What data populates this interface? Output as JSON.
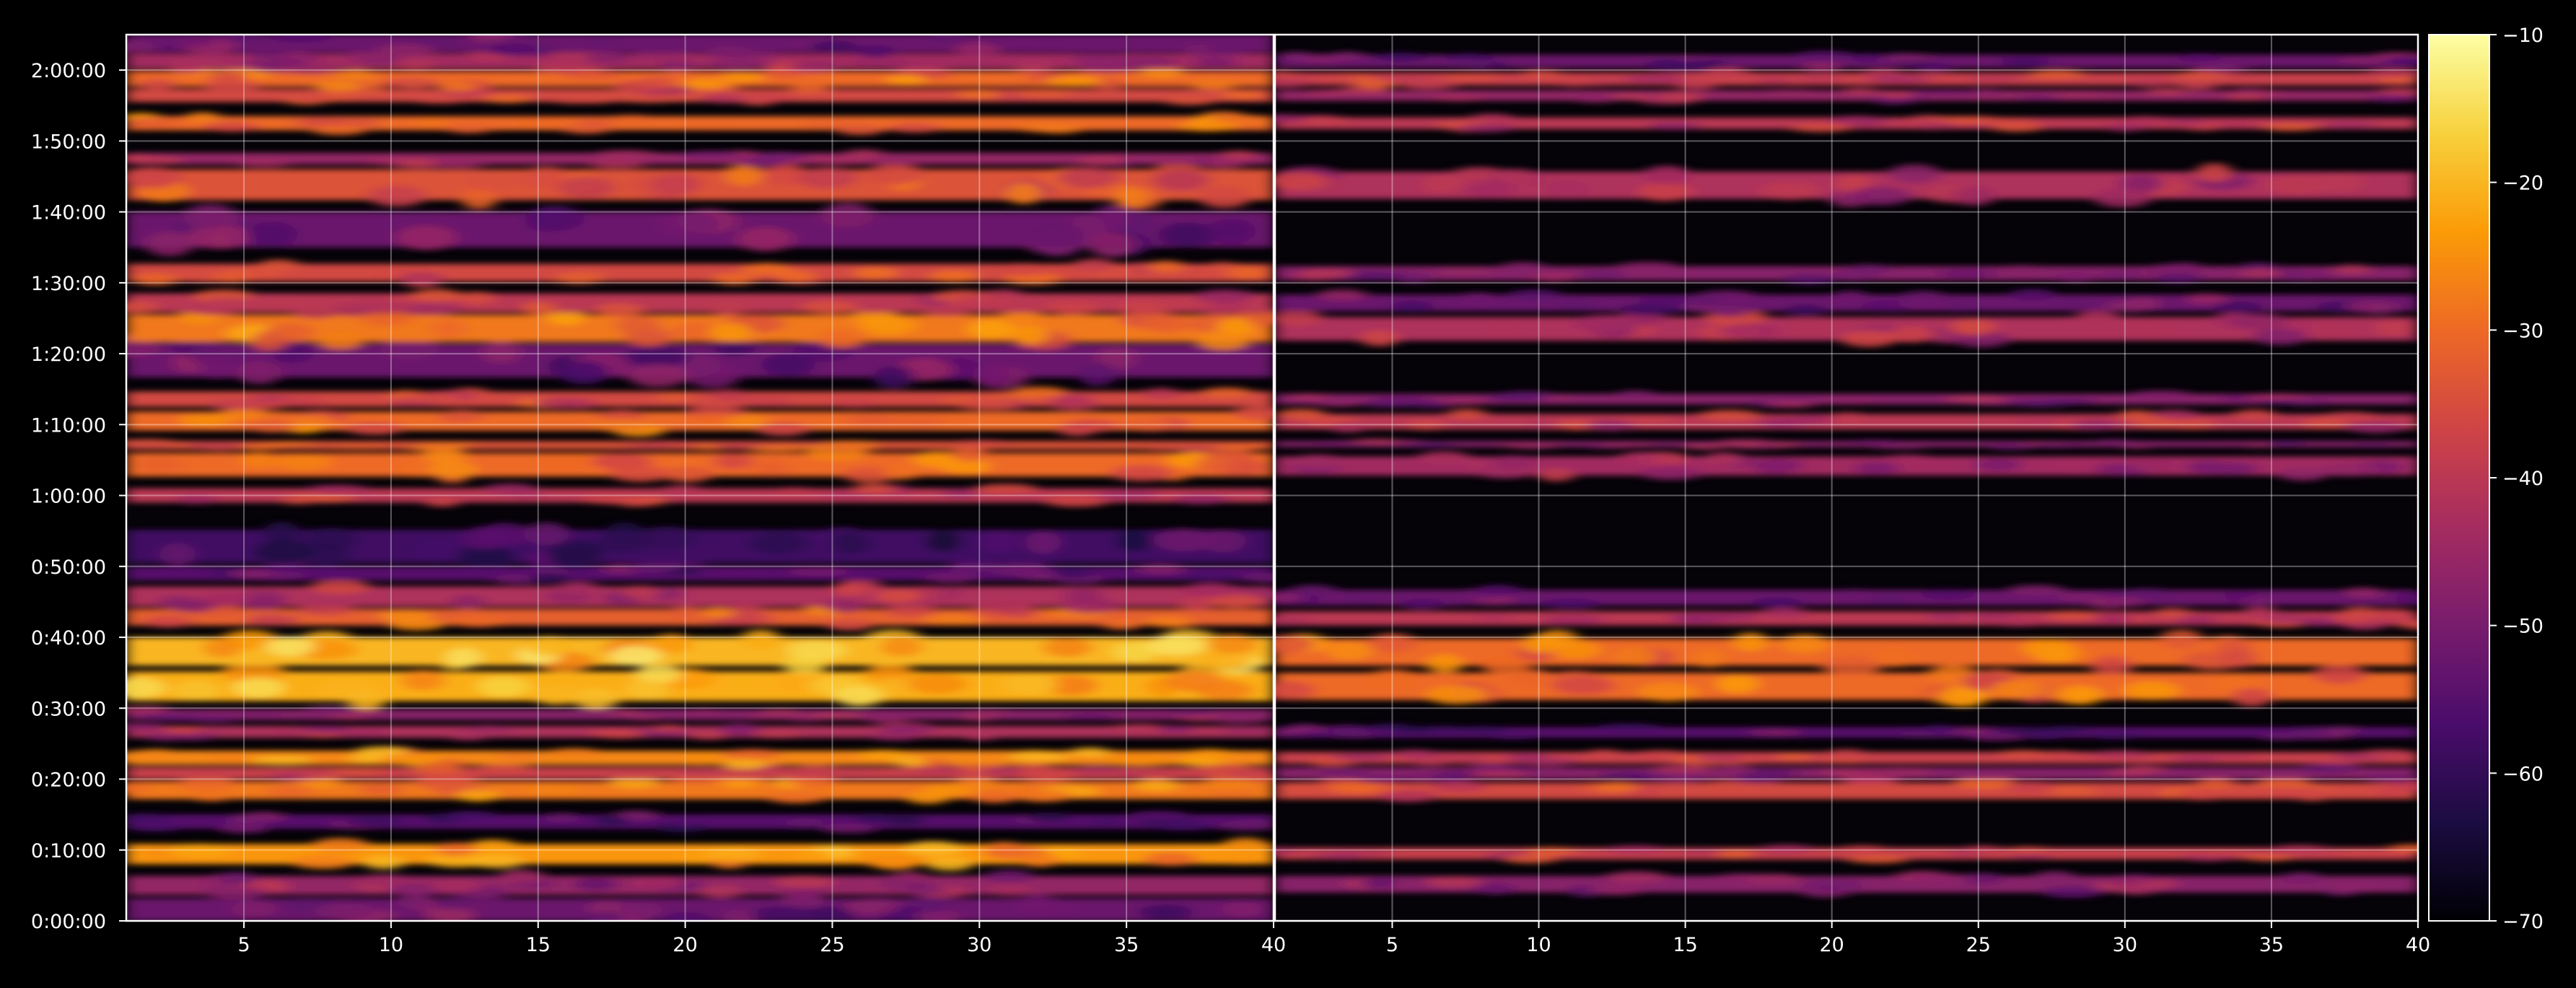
{
  "chart_data": {
    "type": "heatmap",
    "title": "",
    "background_color": "#000000",
    "frame_color": "#ffffff",
    "grid": true,
    "colormap": "inferno",
    "colormap_stops": [
      "#000004",
      "#1b0c41",
      "#4a0c6b",
      "#781c6d",
      "#a52c60",
      "#cf4446",
      "#ed6925",
      "#fb9b06",
      "#f7d13d",
      "#fcffa4"
    ],
    "y_axis": {
      "range_seconds": [
        0,
        7500
      ],
      "tick_values_seconds": [
        0,
        600,
        1200,
        1800,
        2400,
        3000,
        3600,
        4200,
        4800,
        5400,
        6000,
        6600,
        7200
      ],
      "tick_labels": [
        "0:00:00",
        "0:10:00",
        "0:20:00",
        "0:30:00",
        "0:40:00",
        "0:50:00",
        "1:00:00",
        "1:10:00",
        "1:20:00",
        "1:30:00",
        "1:40:00",
        "1:50:00",
        "2:00:00"
      ]
    },
    "panels": [
      {
        "name": "left",
        "x_range": [
          1,
          40
        ],
        "x_tick_values": [
          5,
          10,
          15,
          20,
          25,
          30,
          35,
          40
        ],
        "x_tick_labels": [
          "5",
          "10",
          "15",
          "20",
          "25",
          "30",
          "35",
          "40"
        ],
        "bands": [
          {
            "t_start": 0,
            "t_end": 190,
            "level": -52
          },
          {
            "t_start": 220,
            "t_end": 380,
            "level": -46
          },
          {
            "t_start": 480,
            "t_end": 650,
            "level": -24
          },
          {
            "t_start": 780,
            "t_end": 900,
            "level": -55
          },
          {
            "t_start": 1030,
            "t_end": 1180,
            "level": -28
          },
          {
            "t_start": 1200,
            "t_end": 1300,
            "level": -38
          },
          {
            "t_start": 1320,
            "t_end": 1440,
            "level": -26
          },
          {
            "t_start": 1550,
            "t_end": 1650,
            "level": -42
          },
          {
            "t_start": 1700,
            "t_end": 1790,
            "level": -48
          },
          {
            "t_start": 1860,
            "t_end": 2110,
            "level": -21
          },
          {
            "t_start": 2160,
            "t_end": 2400,
            "level": -20
          },
          {
            "t_start": 2500,
            "t_end": 2640,
            "level": -32
          },
          {
            "t_start": 2660,
            "t_end": 2830,
            "level": -42
          },
          {
            "t_start": 2880,
            "t_end": 3000,
            "level": -55
          },
          {
            "t_start": 3030,
            "t_end": 3310,
            "level": -58
          },
          {
            "t_start": 3540,
            "t_end": 3660,
            "level": -40
          },
          {
            "t_start": 3760,
            "t_end": 3960,
            "level": -30
          },
          {
            "t_start": 3990,
            "t_end": 4060,
            "level": -34
          },
          {
            "t_start": 4150,
            "t_end": 4310,
            "level": -30
          },
          {
            "t_start": 4350,
            "t_end": 4480,
            "level": -36
          },
          {
            "t_start": 4600,
            "t_end": 4880,
            "level": -52
          },
          {
            "t_start": 4900,
            "t_end": 5130,
            "level": -28
          },
          {
            "t_start": 5150,
            "t_end": 5310,
            "level": -40
          },
          {
            "t_start": 5410,
            "t_end": 5560,
            "level": -36
          },
          {
            "t_start": 5700,
            "t_end": 6000,
            "level": -52
          },
          {
            "t_start": 6100,
            "t_end": 6360,
            "level": -34
          },
          {
            "t_start": 6400,
            "t_end": 6500,
            "level": -46
          },
          {
            "t_start": 6690,
            "t_end": 6810,
            "level": -30
          },
          {
            "t_start": 6930,
            "t_end": 7040,
            "level": -36
          },
          {
            "t_start": 7060,
            "t_end": 7190,
            "level": -30
          },
          {
            "t_start": 7210,
            "t_end": 7340,
            "level": -44
          },
          {
            "t_start": 7350,
            "t_end": 7500,
            "level": -52
          }
        ]
      },
      {
        "name": "right",
        "x_range": [
          1,
          40
        ],
        "x_tick_values": [
          5,
          10,
          15,
          20,
          25,
          30,
          35,
          40
        ],
        "x_tick_labels": [
          "5",
          "10",
          "15",
          "20",
          "25",
          "30",
          "35",
          "40"
        ],
        "bands": [
          {
            "t_start": 240,
            "t_end": 380,
            "level": -48
          },
          {
            "t_start": 520,
            "t_end": 620,
            "level": -38
          },
          {
            "t_start": 1030,
            "t_end": 1170,
            "level": -36
          },
          {
            "t_start": 1200,
            "t_end": 1300,
            "level": -48
          },
          {
            "t_start": 1330,
            "t_end": 1430,
            "level": -38
          },
          {
            "t_start": 1550,
            "t_end": 1640,
            "level": -55
          },
          {
            "t_start": 1870,
            "t_end": 2100,
            "level": -30
          },
          {
            "t_start": 2160,
            "t_end": 2390,
            "level": -30
          },
          {
            "t_start": 2500,
            "t_end": 2620,
            "level": -40
          },
          {
            "t_start": 2670,
            "t_end": 2800,
            "level": -52
          },
          {
            "t_start": 3770,
            "t_end": 3930,
            "level": -44
          },
          {
            "t_start": 4010,
            "t_end": 4060,
            "level": -48
          },
          {
            "t_start": 4160,
            "t_end": 4290,
            "level": -40
          },
          {
            "t_start": 4370,
            "t_end": 4460,
            "level": -48
          },
          {
            "t_start": 4910,
            "t_end": 5110,
            "level": -42
          },
          {
            "t_start": 5160,
            "t_end": 5300,
            "level": -52
          },
          {
            "t_start": 5420,
            "t_end": 5540,
            "level": -48
          },
          {
            "t_start": 6110,
            "t_end": 6340,
            "level": -42
          },
          {
            "t_start": 6700,
            "t_end": 6800,
            "level": -40
          },
          {
            "t_start": 6940,
            "t_end": 7030,
            "level": -46
          },
          {
            "t_start": 7070,
            "t_end": 7180,
            "level": -38
          },
          {
            "t_start": 7220,
            "t_end": 7330,
            "level": -52
          }
        ]
      }
    ],
    "colorbar": {
      "range": [
        -70,
        -10
      ],
      "tick_values": [
        -70,
        -60,
        -50,
        -40,
        -30,
        -20,
        -10
      ],
      "tick_labels": [
        "−70",
        "−60",
        "−50",
        "−40",
        "−30",
        "−20",
        "−10"
      ]
    }
  }
}
